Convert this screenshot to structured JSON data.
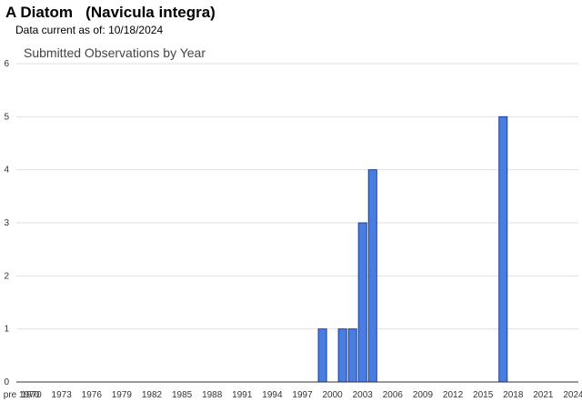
{
  "header": {
    "common_name": "A Diatom",
    "scientific_name": "(Navicula integra)",
    "data_current_label": "Data current as of:",
    "data_current_date": "10/18/2024"
  },
  "chart_data": {
    "type": "bar",
    "title": "Submitted Observations by Year",
    "xlabel": "",
    "ylabel": "",
    "ylim": [
      0,
      6
    ],
    "grid": true,
    "legend": "none",
    "bar_color": "#4a7de0",
    "bar_edge_color": "#1d3f9a",
    "categories": [
      "pre 1970",
      "1970",
      "1971",
      "1972",
      "1973",
      "1974",
      "1975",
      "1976",
      "1977",
      "1978",
      "1979",
      "1980",
      "1981",
      "1982",
      "1983",
      "1984",
      "1985",
      "1986",
      "1987",
      "1988",
      "1989",
      "1990",
      "1991",
      "1992",
      "1993",
      "1994",
      "1995",
      "1996",
      "1997",
      "1998",
      "1999",
      "2000",
      "2001",
      "2002",
      "2003",
      "2004",
      "2005",
      "2006",
      "2007",
      "2008",
      "2009",
      "2010",
      "2011",
      "2012",
      "2013",
      "2014",
      "2015",
      "2016",
      "2017",
      "2018",
      "2019",
      "2020",
      "2021",
      "2022",
      "2023",
      "2024"
    ],
    "values": [
      0,
      0,
      0,
      0,
      0,
      0,
      0,
      0,
      0,
      0,
      0,
      0,
      0,
      0,
      0,
      0,
      0,
      0,
      0,
      0,
      0,
      0,
      0,
      0,
      0,
      0,
      0,
      0,
      0,
      0,
      1,
      0,
      1,
      1,
      3,
      4,
      0,
      0,
      0,
      0,
      0,
      0,
      0,
      0,
      0,
      0,
      0,
      0,
      5,
      0,
      0,
      0,
      0,
      0,
      0,
      0
    ],
    "x_tick_labels": [
      "pre 1970",
      "1970",
      "1973",
      "1976",
      "1979",
      "1982",
      "1985",
      "1988",
      "1991",
      "1994",
      "1997",
      "2000",
      "2003",
      "2006",
      "2009",
      "2012",
      "2015",
      "2018",
      "2021",
      "2024"
    ],
    "y_ticks": [
      0,
      1,
      2,
      3,
      4,
      5,
      6
    ]
  }
}
